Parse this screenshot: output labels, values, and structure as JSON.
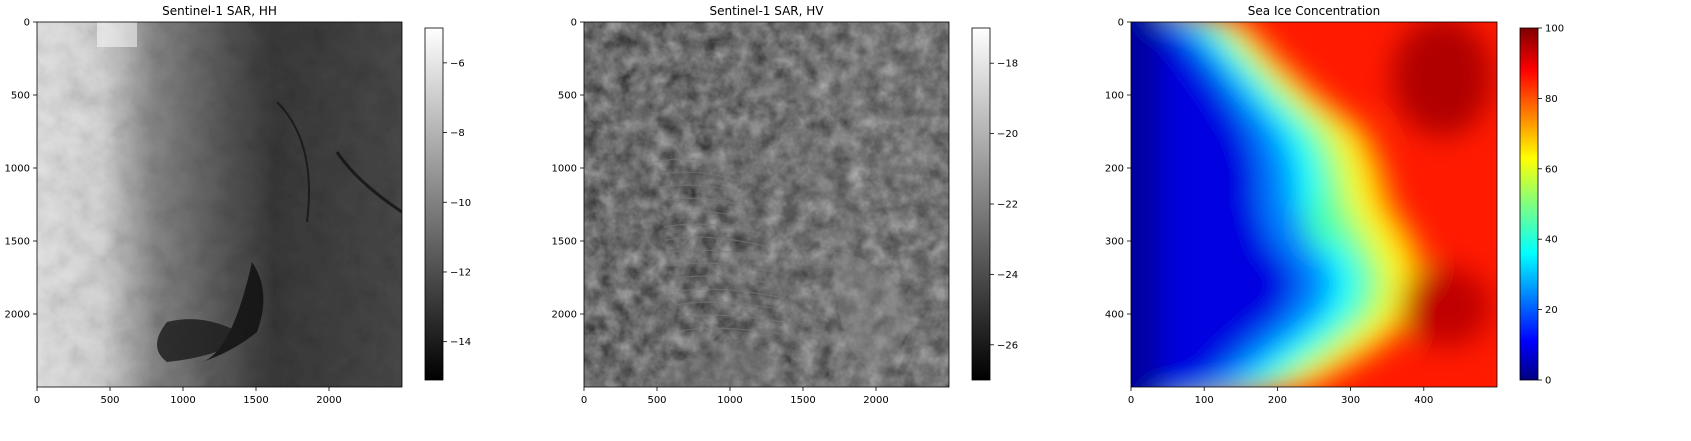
{
  "chart_data": [
    {
      "type": "heatmap",
      "title": "Sentinel-1 SAR, HH",
      "xlabel": "",
      "ylabel": "",
      "xticks": [
        0,
        500,
        1000,
        1500,
        2000
      ],
      "yticks": [
        0,
        500,
        1000,
        1500,
        2000
      ],
      "xlim": [
        0,
        2500
      ],
      "ylim": [
        2500,
        0
      ],
      "colormap": "gray",
      "colorbar": {
        "range": [
          -15.1,
          -5.0
        ],
        "ticks": [
          -6,
          -8,
          -10,
          -12,
          -14
        ]
      },
      "description_values": {
        "left_region": -5.5,
        "middle_region": -11,
        "right_region": -12.5
      }
    },
    {
      "type": "heatmap",
      "title": "Sentinel-1 SAR, HV",
      "xlabel": "",
      "ylabel": "",
      "xticks": [
        0,
        500,
        1000,
        1500,
        2000
      ],
      "yticks": [
        0,
        500,
        1000,
        1500,
        2000
      ],
      "xlim": [
        0,
        2500
      ],
      "ylim": [
        2500,
        0
      ],
      "colormap": "gray",
      "colorbar": {
        "range": [
          -27.0,
          -17.0
        ],
        "ticks": [
          -18,
          -20,
          -22,
          -24,
          -26
        ]
      }
    },
    {
      "type": "heatmap",
      "title": "Sea Ice Concentration",
      "xlabel": "",
      "ylabel": "",
      "xticks": [
        0,
        100,
        200,
        300,
        400
      ],
      "yticks": [
        0,
        100,
        200,
        300,
        400
      ],
      "xlim": [
        0,
        500
      ],
      "ylim": [
        500,
        0
      ],
      "colormap": "jet",
      "colorbar": {
        "range": [
          0,
          100
        ],
        "ticks": [
          0,
          20,
          40,
          60,
          80,
          100
        ]
      },
      "ice_edge_profile": {
        "y": [
          0,
          50,
          100,
          150,
          200,
          250,
          300,
          350,
          400,
          450,
          500
        ],
        "low_edge_x": [
          55,
          95,
          130,
          160,
          175,
          175,
          190,
          230,
          210,
          150,
          100
        ],
        "high_edge_x": [
          135,
          180,
          230,
          290,
          310,
          320,
          350,
          370,
          360,
          300,
          220
        ]
      }
    }
  ]
}
